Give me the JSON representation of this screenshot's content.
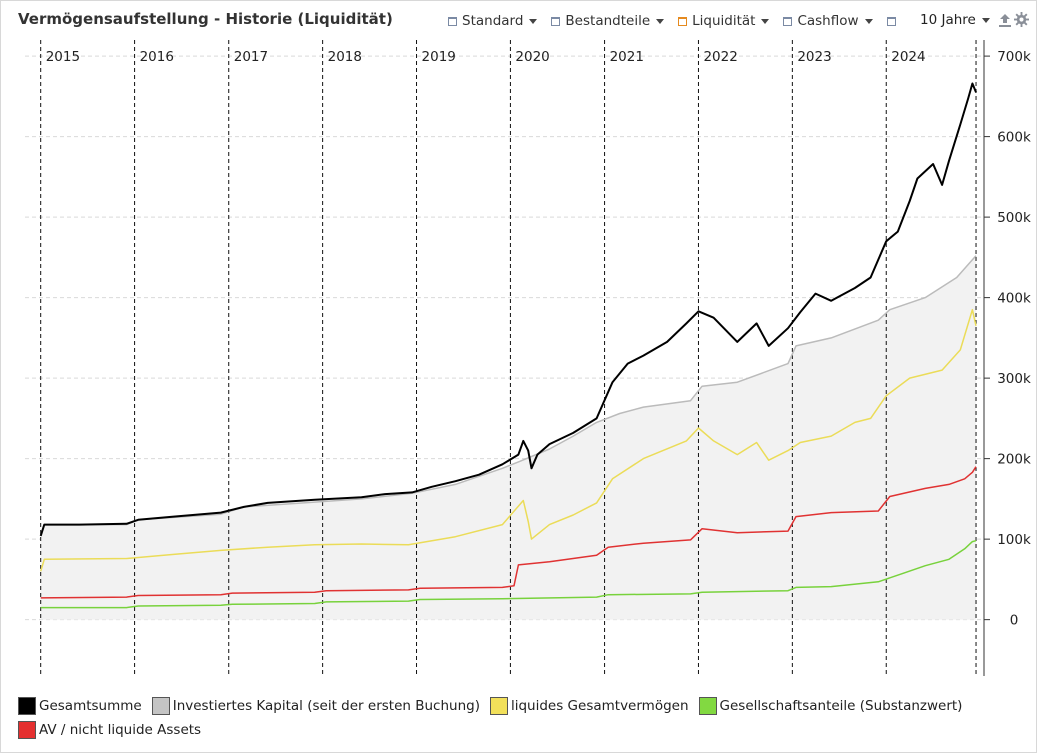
{
  "header": {
    "title": "Vermögensaufstellung - Historie (Liquidität)",
    "toolbar": [
      {
        "label": "Standard",
        "accent": false
      },
      {
        "label": "Bestandteile",
        "accent": false
      },
      {
        "label": "Liquidität",
        "accent": true
      },
      {
        "label": "Cashflow",
        "accent": false
      },
      {
        "label": "",
        "accent": false
      }
    ],
    "range_label": "10 Jahre",
    "icons": [
      "export-icon",
      "gear-icon"
    ]
  },
  "chart_data": {
    "type": "line",
    "x_type": "date",
    "xlim": [
      "2014-11-01",
      "2025-01-15"
    ],
    "ylim": [
      -70000,
      720000
    ],
    "y_ticks": [
      0,
      100000,
      200000,
      300000,
      400000,
      500000,
      600000,
      700000
    ],
    "y_tick_labels": [
      "0",
      "100k",
      "200k",
      "300k",
      "400k",
      "500k",
      "600k",
      "700k"
    ],
    "year_markers": [
      "2015",
      "2016",
      "2017",
      "2018",
      "2019",
      "2020",
      "2021",
      "2022",
      "2023",
      "2024"
    ],
    "y_axis_position": "right",
    "grid": true,
    "legend_position": "bottom-left",
    "series": [
      {
        "name": "Gesamtsumme",
        "color": "#000000",
        "points": [
          [
            "2015-01-01",
            104000
          ],
          [
            "2015-01-15",
            118000
          ],
          [
            "2015-06-01",
            118000
          ],
          [
            "2015-12-01",
            119000
          ],
          [
            "2016-01-15",
            124000
          ],
          [
            "2016-06-01",
            128000
          ],
          [
            "2016-12-01",
            133000
          ],
          [
            "2017-03-01",
            140000
          ],
          [
            "2017-06-01",
            145000
          ],
          [
            "2017-12-01",
            149000
          ],
          [
            "2018-06-01",
            152000
          ],
          [
            "2018-09-01",
            156000
          ],
          [
            "2018-12-15",
            158000
          ],
          [
            "2019-03-01",
            165000
          ],
          [
            "2019-06-01",
            172000
          ],
          [
            "2019-09-01",
            180000
          ],
          [
            "2019-12-01",
            193000
          ],
          [
            "2020-02-01",
            205000
          ],
          [
            "2020-02-20",
            222000
          ],
          [
            "2020-03-10",
            210000
          ],
          [
            "2020-03-23",
            188000
          ],
          [
            "2020-04-15",
            205000
          ],
          [
            "2020-06-01",
            218000
          ],
          [
            "2020-09-01",
            232000
          ],
          [
            "2020-12-01",
            250000
          ],
          [
            "2021-02-01",
            295000
          ],
          [
            "2021-04-01",
            318000
          ],
          [
            "2021-06-01",
            328000
          ],
          [
            "2021-09-01",
            345000
          ],
          [
            "2021-11-15",
            368000
          ],
          [
            "2022-01-01",
            383000
          ],
          [
            "2022-03-01",
            375000
          ],
          [
            "2022-06-01",
            345000
          ],
          [
            "2022-08-15",
            368000
          ],
          [
            "2022-10-01",
            340000
          ],
          [
            "2022-12-15",
            362000
          ],
          [
            "2023-02-01",
            382000
          ],
          [
            "2023-04-01",
            405000
          ],
          [
            "2023-06-01",
            396000
          ],
          [
            "2023-09-01",
            412000
          ],
          [
            "2023-11-01",
            425000
          ],
          [
            "2024-01-01",
            470000
          ],
          [
            "2024-02-15",
            482000
          ],
          [
            "2024-04-01",
            520000
          ],
          [
            "2024-05-01",
            548000
          ],
          [
            "2024-07-01",
            566000
          ],
          [
            "2024-08-05",
            540000
          ],
          [
            "2024-09-01",
            570000
          ],
          [
            "2024-10-15",
            615000
          ],
          [
            "2024-11-15",
            648000
          ],
          [
            "2024-12-01",
            666000
          ],
          [
            "2024-12-15",
            655000
          ]
        ]
      },
      {
        "name": "Investiertes Kapital (seit der ersten Buchung)",
        "color": "#bbbbbb",
        "fill": "#f2f2f2",
        "points": [
          [
            "2015-01-01",
            104000
          ],
          [
            "2015-01-15",
            118000
          ],
          [
            "2015-12-01",
            118000
          ],
          [
            "2016-01-15",
            124000
          ],
          [
            "2016-12-01",
            131000
          ],
          [
            "2017-03-01",
            140000
          ],
          [
            "2017-12-01",
            146000
          ],
          [
            "2018-06-01",
            150000
          ],
          [
            "2018-12-15",
            157000
          ],
          [
            "2019-06-01",
            168000
          ],
          [
            "2019-12-01",
            188000
          ],
          [
            "2020-02-01",
            196000
          ],
          [
            "2020-06-01",
            212000
          ],
          [
            "2020-09-01",
            228000
          ],
          [
            "2020-12-01",
            245000
          ],
          [
            "2021-03-01",
            256000
          ],
          [
            "2021-06-01",
            264000
          ],
          [
            "2021-12-01",
            272000
          ],
          [
            "2022-01-15",
            290000
          ],
          [
            "2022-06-01",
            295000
          ],
          [
            "2022-12-15",
            318000
          ],
          [
            "2023-01-15",
            340000
          ],
          [
            "2023-06-01",
            350000
          ],
          [
            "2023-12-01",
            372000
          ],
          [
            "2024-01-15",
            385000
          ],
          [
            "2024-06-01",
            400000
          ],
          [
            "2024-10-01",
            425000
          ],
          [
            "2024-12-01",
            447000
          ],
          [
            "2024-12-15",
            452000
          ]
        ]
      },
      {
        "name": "liquides Gesamtvermögen",
        "color": "#ebdc58",
        "points": [
          [
            "2015-01-01",
            60000
          ],
          [
            "2015-01-15",
            75000
          ],
          [
            "2015-12-01",
            76000
          ],
          [
            "2016-06-01",
            81000
          ],
          [
            "2016-12-01",
            86000
          ],
          [
            "2017-06-01",
            90000
          ],
          [
            "2017-12-01",
            93000
          ],
          [
            "2018-06-01",
            94000
          ],
          [
            "2018-12-01",
            93000
          ],
          [
            "2019-06-01",
            103000
          ],
          [
            "2019-12-01",
            118000
          ],
          [
            "2020-02-20",
            148000
          ],
          [
            "2020-03-10",
            122000
          ],
          [
            "2020-03-23",
            100000
          ],
          [
            "2020-06-01",
            118000
          ],
          [
            "2020-09-01",
            130000
          ],
          [
            "2020-12-01",
            145000
          ],
          [
            "2021-02-01",
            175000
          ],
          [
            "2021-06-01",
            200000
          ],
          [
            "2021-11-15",
            222000
          ],
          [
            "2022-01-01",
            238000
          ],
          [
            "2022-03-01",
            222000
          ],
          [
            "2022-06-01",
            205000
          ],
          [
            "2022-08-15",
            220000
          ],
          [
            "2022-10-01",
            198000
          ],
          [
            "2022-12-15",
            210000
          ],
          [
            "2023-02-01",
            220000
          ],
          [
            "2023-06-01",
            228000
          ],
          [
            "2023-09-01",
            245000
          ],
          [
            "2023-11-01",
            250000
          ],
          [
            "2024-01-01",
            278000
          ],
          [
            "2024-04-01",
            300000
          ],
          [
            "2024-08-05",
            310000
          ],
          [
            "2024-10-15",
            335000
          ],
          [
            "2024-12-01",
            385000
          ],
          [
            "2024-12-15",
            365000
          ]
        ]
      },
      {
        "name": "Gesellschaftsanteile (Substanzwert)",
        "color": "#78d23c",
        "points": [
          [
            "2015-01-01",
            15000
          ],
          [
            "2015-12-01",
            15000
          ],
          [
            "2016-01-15",
            17000
          ],
          [
            "2016-12-01",
            18000
          ],
          [
            "2017-01-15",
            19000
          ],
          [
            "2017-12-01",
            20000
          ],
          [
            "2018-01-15",
            22000
          ],
          [
            "2018-12-01",
            23000
          ],
          [
            "2019-01-15",
            25000
          ],
          [
            "2019-12-01",
            26000
          ],
          [
            "2020-12-01",
            28000
          ],
          [
            "2021-01-15",
            31000
          ],
          [
            "2021-12-01",
            32000
          ],
          [
            "2022-01-15",
            34000
          ],
          [
            "2022-12-15",
            36000
          ],
          [
            "2023-01-15",
            40000
          ],
          [
            "2023-06-01",
            41000
          ],
          [
            "2023-12-01",
            47000
          ],
          [
            "2024-03-01",
            57000
          ],
          [
            "2024-06-01",
            67000
          ],
          [
            "2024-09-01",
            75000
          ],
          [
            "2024-11-01",
            88000
          ],
          [
            "2024-12-01",
            97000
          ],
          [
            "2024-12-15",
            98000
          ]
        ]
      },
      {
        "name": "AV / nicht liquide Assets",
        "color": "#e03232",
        "points": [
          [
            "2015-01-01",
            27000
          ],
          [
            "2015-12-01",
            28000
          ],
          [
            "2016-01-15",
            30000
          ],
          [
            "2016-12-01",
            31000
          ],
          [
            "2017-01-15",
            33000
          ],
          [
            "2017-12-01",
            34000
          ],
          [
            "2018-01-15",
            36000
          ],
          [
            "2018-12-01",
            37000
          ],
          [
            "2019-01-15",
            39000
          ],
          [
            "2019-12-01",
            40000
          ],
          [
            "2020-01-15",
            42000
          ],
          [
            "2020-02-01",
            68000
          ],
          [
            "2020-06-01",
            72000
          ],
          [
            "2020-12-01",
            80000
          ],
          [
            "2021-01-15",
            90000
          ],
          [
            "2021-06-01",
            95000
          ],
          [
            "2021-12-01",
            99000
          ],
          [
            "2022-01-15",
            113000
          ],
          [
            "2022-06-01",
            108000
          ],
          [
            "2022-12-15",
            110000
          ],
          [
            "2023-01-15",
            128000
          ],
          [
            "2023-06-01",
            133000
          ],
          [
            "2023-12-01",
            135000
          ],
          [
            "2024-01-15",
            153000
          ],
          [
            "2024-06-01",
            163000
          ],
          [
            "2024-09-01",
            168000
          ],
          [
            "2024-11-01",
            175000
          ],
          [
            "2024-12-01",
            183000
          ],
          [
            "2024-12-15",
            190000
          ]
        ]
      }
    ]
  },
  "legend": [
    {
      "label": "Gesamtsumme",
      "color": "#000000"
    },
    {
      "label": "Investiertes Kapital (seit der ersten Buchung)",
      "color": "#c4c4c4"
    },
    {
      "label": "liquides Gesamtvermögen",
      "color": "#f2e05a"
    },
    {
      "label": "Gesellschaftsanteile (Substanzwert)",
      "color": "#82d941"
    },
    {
      "label": "AV / nicht liquide Assets",
      "color": "#e53030"
    }
  ]
}
